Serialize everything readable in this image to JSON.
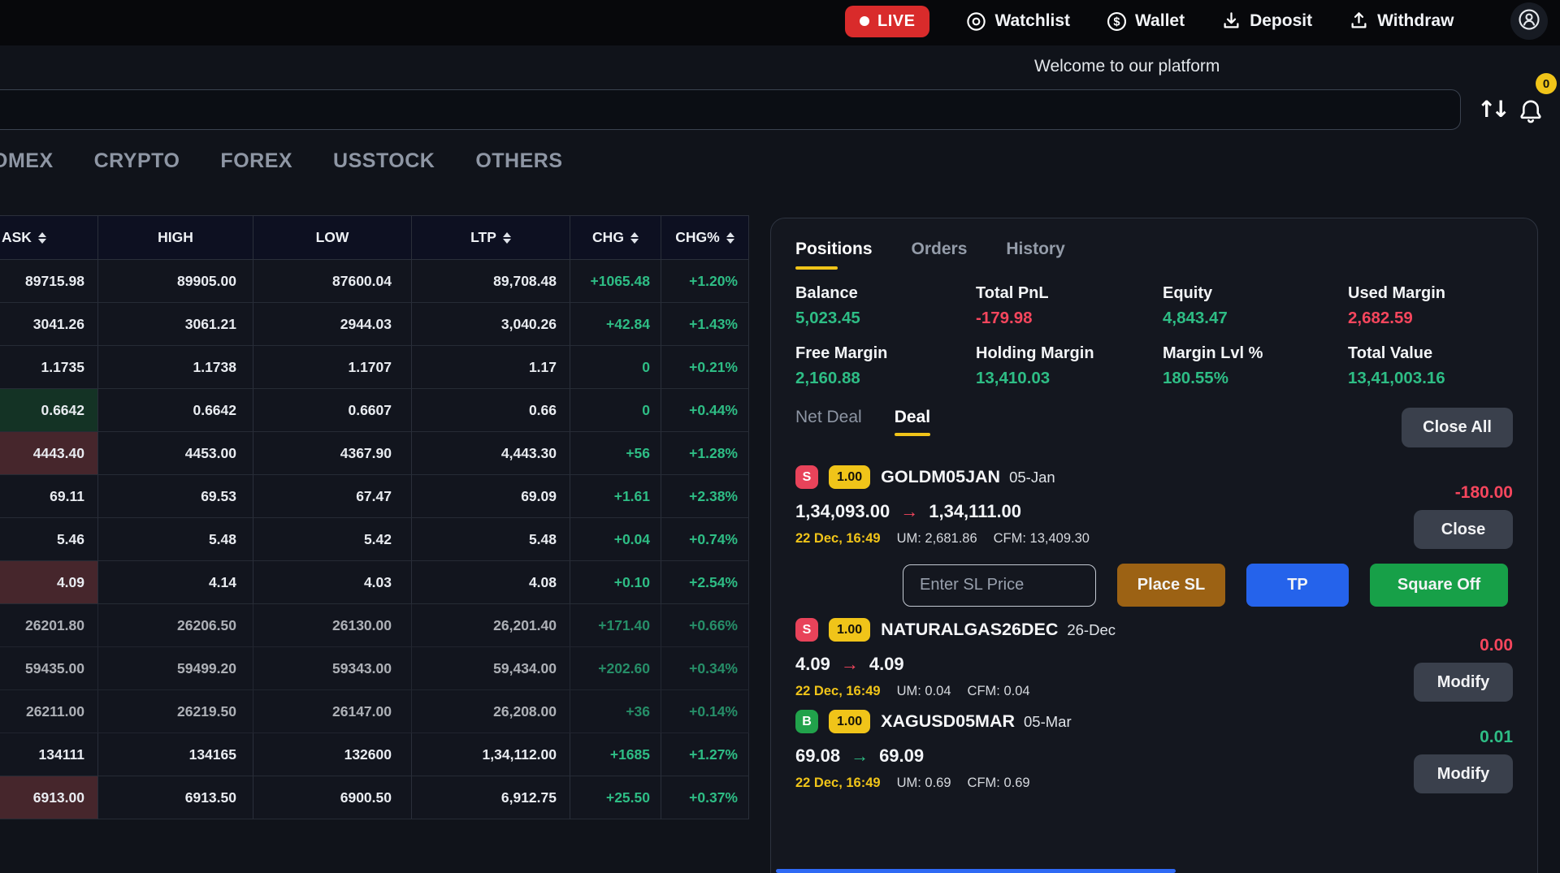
{
  "colors": {
    "green": "#2ebd85",
    "red": "#f6465d",
    "yellow": "#f0c419",
    "live_red": "#d92b2b",
    "buy_green": "#21a24b",
    "btn_slate": "#3a404c",
    "btn_blue": "#2563eb",
    "btn_brown": "#9c6214",
    "btn_green": "#17a048"
  },
  "header": {
    "live_label": "LIVE",
    "nav": [
      {
        "icon": "watchlist-icon",
        "label": "Watchlist"
      },
      {
        "icon": "wallet-icon",
        "label": "Wallet"
      },
      {
        "icon": "deposit-icon",
        "label": "Deposit"
      },
      {
        "icon": "withdraw-icon",
        "label": "Withdraw"
      }
    ],
    "welcome": "Welcome to our platform",
    "notification_count": "0"
  },
  "search": {
    "value": "",
    "placeholder": ""
  },
  "market_tabs": [
    "OMEX",
    "CRYPTO",
    "FOREX",
    "USSTOCK",
    "OTHERS"
  ],
  "table": {
    "columns": [
      {
        "label": "ASK",
        "sortable": true
      },
      {
        "label": "HIGH",
        "sortable": false
      },
      {
        "label": "LOW",
        "sortable": false
      },
      {
        "label": "LTP",
        "sortable": true
      },
      {
        "label": "CHG",
        "sortable": true
      },
      {
        "label": "CHG%",
        "sortable": true
      }
    ],
    "rows": [
      {
        "ask": "89715.98",
        "high": "89905.00",
        "low": "87600.04",
        "ltp": "89,708.48",
        "chg": "+1065.48",
        "chg_pct": "+1.20%",
        "ask_bg": "",
        "dim": false
      },
      {
        "ask": "3041.26",
        "high": "3061.21",
        "low": "2944.03",
        "ltp": "3,040.26",
        "chg": "+42.84",
        "chg_pct": "+1.43%",
        "ask_bg": "",
        "dim": false
      },
      {
        "ask": "1.1735",
        "high": "1.1738",
        "low": "1.1707",
        "ltp": "1.17",
        "chg": "0",
        "chg_pct": "+0.21%",
        "ask_bg": "",
        "dim": false
      },
      {
        "ask": "0.6642",
        "high": "0.6642",
        "low": "0.6607",
        "ltp": "0.66",
        "chg": "0",
        "chg_pct": "+0.44%",
        "ask_bg": "green",
        "dim": false
      },
      {
        "ask": "4443.40",
        "high": "4453.00",
        "low": "4367.90",
        "ltp": "4,443.30",
        "chg": "+56",
        "chg_pct": "+1.28%",
        "ask_bg": "red",
        "dim": false
      },
      {
        "ask": "69.11",
        "high": "69.53",
        "low": "67.47",
        "ltp": "69.09",
        "chg": "+1.61",
        "chg_pct": "+2.38%",
        "ask_bg": "",
        "dim": false
      },
      {
        "ask": "5.46",
        "high": "5.48",
        "low": "5.42",
        "ltp": "5.48",
        "chg": "+0.04",
        "chg_pct": "+0.74%",
        "ask_bg": "",
        "dim": false
      },
      {
        "ask": "4.09",
        "high": "4.14",
        "low": "4.03",
        "ltp": "4.08",
        "chg": "+0.10",
        "chg_pct": "+2.54%",
        "ask_bg": "red",
        "dim": false
      },
      {
        "ask": "26201.80",
        "high": "26206.50",
        "low": "26130.00",
        "ltp": "26,201.40",
        "chg": "+171.40",
        "chg_pct": "+0.66%",
        "ask_bg": "",
        "dim": true
      },
      {
        "ask": "59435.00",
        "high": "59499.20",
        "low": "59343.00",
        "ltp": "59,434.00",
        "chg": "+202.60",
        "chg_pct": "+0.34%",
        "ask_bg": "",
        "dim": true
      },
      {
        "ask": "26211.00",
        "high": "26219.50",
        "low": "26147.00",
        "ltp": "26,208.00",
        "chg": "+36",
        "chg_pct": "+0.14%",
        "ask_bg": "",
        "dim": true
      },
      {
        "ask": "134111",
        "high": "134165",
        "low": "132600",
        "ltp": "1,34,112.00",
        "chg": "+1685",
        "chg_pct": "+1.27%",
        "ask_bg": "",
        "dim": false
      },
      {
        "ask": "6913.00",
        "high": "6913.50",
        "low": "6900.50",
        "ltp": "6,912.75",
        "chg": "+25.50",
        "chg_pct": "+0.37%",
        "ask_bg": "red",
        "dim": false
      }
    ]
  },
  "panel": {
    "tabs": [
      "Positions",
      "Orders",
      "History"
    ],
    "active_tab": "Positions",
    "stats": [
      {
        "label": "Balance",
        "value": "5,023.45",
        "tone": "green"
      },
      {
        "label": "Total PnL",
        "value": "-179.98",
        "tone": "red"
      },
      {
        "label": "Equity",
        "value": "4,843.47",
        "tone": "green"
      },
      {
        "label": "Used Margin",
        "value": "2,682.59",
        "tone": "red"
      },
      {
        "label": "Free Margin",
        "value": "2,160.88",
        "tone": "green"
      },
      {
        "label": "Holding Margin",
        "value": "13,410.03",
        "tone": "green"
      },
      {
        "label": "Margin Lvl %",
        "value": "180.55%",
        "tone": "green"
      },
      {
        "label": "Total Value",
        "value": "13,41,003.16",
        "tone": "green"
      }
    ],
    "deal_tabs": [
      "Net Deal",
      "Deal"
    ],
    "active_deal_tab": "Deal",
    "close_all_label": "Close All",
    "sl": {
      "placeholder": "Enter SL Price",
      "place_sl_label": "Place SL",
      "tp_label": "TP",
      "square_off_label": "Square Off"
    },
    "positions": [
      {
        "side": "S",
        "qty": "1.00",
        "symbol": "GOLDM05JAN",
        "expiry": "05-Jan",
        "pnl": "-180.00",
        "pnl_tone": "red",
        "price_from": "1,34,093.00",
        "price_to": "1,34,111.00",
        "arrow_tone": "red",
        "time": "22 Dec, 16:49",
        "um": "UM: 2,681.86",
        "cfm": "CFM: 13,409.30",
        "action_label": "Close"
      },
      {
        "side": "S",
        "qty": "1.00",
        "symbol": "NATURALGAS26DEC",
        "expiry": "26-Dec",
        "pnl": "0.00",
        "pnl_tone": "red",
        "price_from": "4.09",
        "price_to": "4.09",
        "arrow_tone": "red",
        "time": "22 Dec, 16:49",
        "um": "UM: 0.04",
        "cfm": "CFM: 0.04",
        "action_label": "Modify"
      },
      {
        "side": "B",
        "qty": "1.00",
        "symbol": "XAGUSD05MAR",
        "expiry": "05-Mar",
        "pnl": "0.01",
        "pnl_tone": "green",
        "price_from": "69.08",
        "price_to": "69.09",
        "arrow_tone": "green",
        "time": "22 Dec, 16:49",
        "um": "UM: 0.69",
        "cfm": "CFM: 0.69",
        "action_label": "Modify"
      }
    ]
  }
}
